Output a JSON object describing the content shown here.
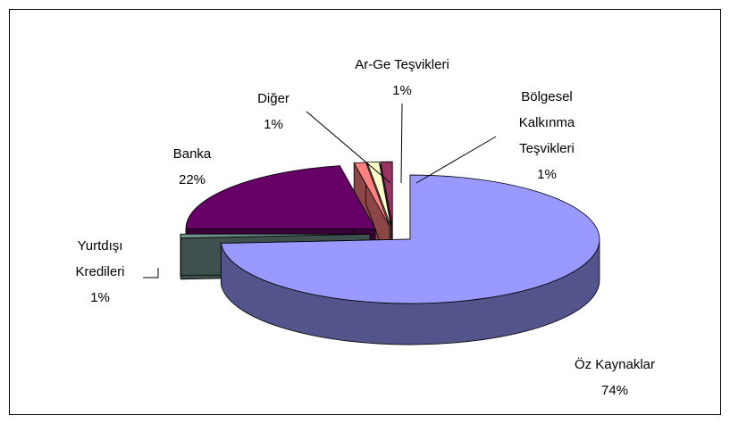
{
  "chart_data": {
    "type": "pie",
    "categories": [
      "Öz Kaynaklar",
      "Yurtdışı Kredileri",
      "Banka",
      "Diğer",
      "Ar-Ge Teşvikleri",
      "Bölgesel Kalkınma Teşvikleri"
    ],
    "values": [
      74,
      1,
      22,
      1,
      1,
      1
    ],
    "value_labels": [
      "74%",
      "1%",
      "22%",
      "1%",
      "1%",
      "1%"
    ],
    "colors": [
      "#9999ff",
      "#6e918c",
      "#660066",
      "#ff8080",
      "#ffffcc",
      "#993366"
    ]
  }
}
